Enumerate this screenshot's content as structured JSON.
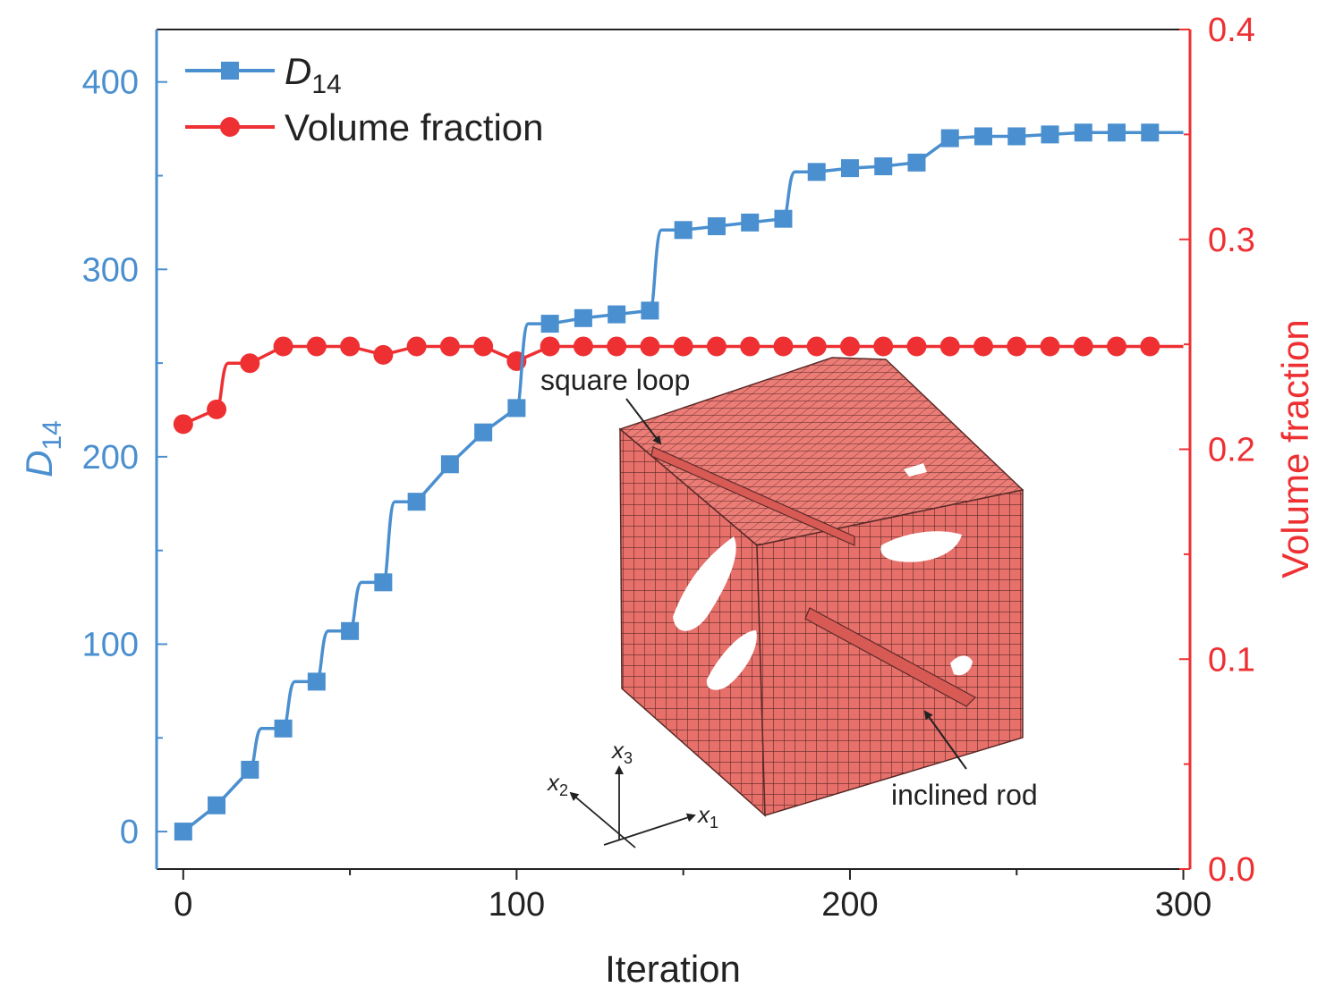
{
  "chart_data": {
    "type": "line",
    "xlabel": "Iteration",
    "ylabel": "D",
    "ylabel_sub": "14",
    "y2label": "Volume fraction",
    "xlim": [
      -8,
      302
    ],
    "ylim": [
      -20,
      428
    ],
    "y2lim": [
      0.0,
      0.4
    ],
    "x_ticks": [
      0,
      100,
      200,
      300
    ],
    "x_tick_labels": [
      "0",
      "100",
      "200",
      "300"
    ],
    "y_ticks": [
      0,
      100,
      200,
      300,
      400
    ],
    "y_tick_labels": [
      "0",
      "100",
      "200",
      "300",
      "400"
    ],
    "y2_ticks": [
      0.0,
      0.1,
      0.2,
      0.3,
      0.4
    ],
    "y2_tick_labels": [
      "0.0",
      "0.1",
      "0.2",
      "0.3",
      "0.4"
    ],
    "legend_position": "top-left",
    "grid": false,
    "colors": {
      "d14": "#4a8fcf",
      "volume": "#ee3033",
      "axis": "#222222"
    },
    "series": [
      {
        "name": "D",
        "name_sub": "14",
        "axis": "left",
        "marker": "square",
        "x": [
          0,
          10,
          20,
          30,
          40,
          50,
          60,
          70,
          80,
          90,
          100,
          110,
          120,
          130,
          140,
          150,
          160,
          170,
          180,
          190,
          200,
          210,
          220,
          230,
          240,
          250,
          260,
          270,
          280,
          290
        ],
        "values": [
          0,
          14,
          33,
          55,
          80,
          107,
          133,
          176,
          196,
          213,
          226,
          271,
          274,
          276,
          278,
          321,
          323,
          325,
          327,
          352,
          354,
          355,
          357,
          370,
          371,
          371,
          372,
          373,
          373,
          373
        ]
      },
      {
        "name": "Volume fraction",
        "axis": "right",
        "marker": "circle",
        "x": [
          0,
          10,
          20,
          30,
          40,
          50,
          60,
          70,
          80,
          90,
          100,
          110,
          120,
          130,
          140,
          150,
          160,
          170,
          180,
          190,
          200,
          210,
          220,
          230,
          240,
          250,
          260,
          270,
          280,
          290
        ],
        "values": [
          0.212,
          0.219,
          0.241,
          0.249,
          0.249,
          0.249,
          0.245,
          0.249,
          0.249,
          0.249,
          0.242,
          0.249,
          0.249,
          0.249,
          0.249,
          0.249,
          0.249,
          0.249,
          0.249,
          0.249,
          0.249,
          0.249,
          0.249,
          0.249,
          0.249,
          0.249,
          0.249,
          0.249,
          0.249,
          0.249
        ]
      }
    ]
  },
  "inset": {
    "cube_color": "#e8706a",
    "annotations": [
      "square loop",
      "inclined rod"
    ],
    "coordinate_axes": [
      {
        "label": "x",
        "sub": "1"
      },
      {
        "label": "x",
        "sub": "2"
      },
      {
        "label": "x",
        "sub": "3"
      }
    ]
  }
}
